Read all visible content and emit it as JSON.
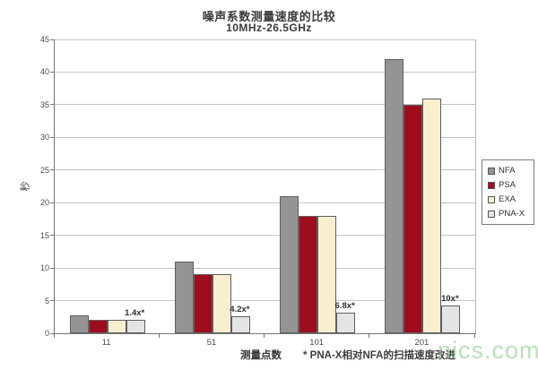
{
  "chart": {
    "title": "噪声系数测量速度的比较",
    "subtitle": "10MHz-26.5GHz",
    "ylabel": "秒",
    "xlabel": "测量点数",
    "footnote": "* PNA-X相对NFA的扫描速度改进",
    "watermark": "nics.com"
  },
  "chart_data": {
    "type": "bar",
    "title": "噪声系数测量速度的比较",
    "subtitle": "10MHz-26.5GHz",
    "categories": [
      "11",
      "51",
      "101",
      "201"
    ],
    "series": [
      {
        "name": "NFA",
        "color": "#949494",
        "values": [
          2.8,
          11,
          21,
          42
        ]
      },
      {
        "name": "PSA",
        "color": "#9e0c1e",
        "values": [
          2,
          9,
          18,
          35
        ]
      },
      {
        "name": "EXA",
        "color": "#f8efce",
        "values": [
          2,
          9,
          18,
          36
        ]
      },
      {
        "name": "PNA-X",
        "color": "#e4e4e4",
        "values": [
          2,
          2.6,
          3.1,
          4.2
        ]
      }
    ],
    "annotations": [
      "1.4x*",
      "4.2x*",
      "6.8x*",
      "10x*"
    ],
    "annotation_series": "PNA-X",
    "xlabel": "测量点数",
    "ylabel": "秒",
    "ylim": [
      0,
      45
    ],
    "ytick_step": 5,
    "grid": true,
    "legend_position": "right"
  }
}
